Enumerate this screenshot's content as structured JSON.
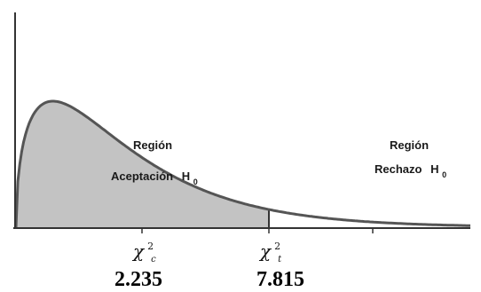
{
  "chart_data": {
    "type": "area",
    "distribution": "chi-square",
    "degrees_of_freedom": 3,
    "grid": false,
    "legend": "none",
    "colors": {
      "curve": "#555555",
      "shade": "#c3c3c3",
      "axis": "#333333",
      "text": "#000000"
    },
    "regions": [
      {
        "label": "Región",
        "label2": "Aceptación",
        "h": "H",
        "sub": "0",
        "shaded": true
      },
      {
        "label": "Región",
        "label2": "Rechazo",
        "h": "H",
        "sub": "0",
        "shaded": false
      }
    ],
    "markers": [
      {
        "name": "chi-calculado",
        "symbol": "χ",
        "sup": "2",
        "sub": "c",
        "value": "2.235"
      },
      {
        "name": "chi-tabla",
        "symbol": "χ",
        "sup": "2",
        "sub": "t",
        "value": "7.815"
      }
    ]
  }
}
